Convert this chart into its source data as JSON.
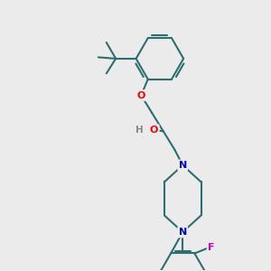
{
  "background_color": "#ebebeb",
  "bond_color": "#2d6e6e",
  "bond_width": 1.5,
  "atom_colors": {
    "O": "#ff0000",
    "N": "#0000cc",
    "F": "#cc00cc",
    "H": "#888888",
    "C": "#2d6e6e"
  },
  "figsize": [
    3.0,
    3.0
  ],
  "dpi": 100
}
